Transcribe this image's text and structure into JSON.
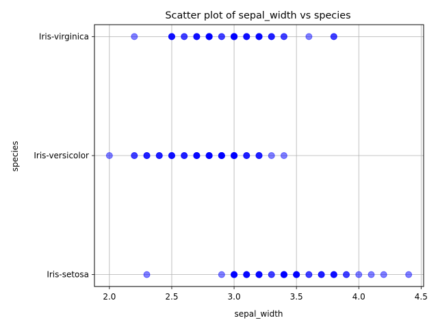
{
  "chart_data": {
    "type": "scatter",
    "title": "Scatter plot of sepal_width vs species",
    "xlabel": "sepal_width",
    "ylabel": "species",
    "xlim": [
      1.88,
      4.52
    ],
    "xticks": [
      2.0,
      2.5,
      3.0,
      3.5,
      4.0,
      4.5
    ],
    "xtick_labels": [
      "2.0",
      "2.5",
      "3.0",
      "3.5",
      "4.0",
      "4.5"
    ],
    "categories": [
      "Iris-setosa",
      "Iris-versicolor",
      "Iris-virginica"
    ],
    "grid": true,
    "marker_color": "#0000ff",
    "marker_alpha": 0.5,
    "series": [
      {
        "category": "Iris-virginica",
        "x": [
          2.2,
          2.5,
          2.5,
          2.5,
          2.5,
          2.6,
          2.6,
          2.7,
          2.7,
          2.7,
          2.7,
          2.8,
          2.8,
          2.8,
          2.8,
          2.8,
          2.8,
          2.8,
          2.8,
          2.9,
          2.9,
          3.0,
          3.0,
          3.0,
          3.0,
          3.0,
          3.0,
          3.0,
          3.0,
          3.0,
          3.0,
          3.0,
          3.0,
          3.1,
          3.1,
          3.1,
          3.1,
          3.2,
          3.2,
          3.2,
          3.2,
          3.2,
          3.3,
          3.3,
          3.3,
          3.4,
          3.4,
          3.6,
          3.8,
          3.8
        ]
      },
      {
        "category": "Iris-versicolor",
        "x": [
          2.0,
          2.2,
          2.2,
          2.3,
          2.3,
          2.3,
          2.4,
          2.4,
          2.4,
          2.5,
          2.5,
          2.5,
          2.5,
          2.6,
          2.6,
          2.6,
          2.7,
          2.7,
          2.7,
          2.7,
          2.7,
          2.8,
          2.8,
          2.8,
          2.8,
          2.8,
          2.8,
          2.9,
          2.9,
          2.9,
          2.9,
          2.9,
          2.9,
          2.9,
          3.0,
          3.0,
          3.0,
          3.0,
          3.0,
          3.0,
          3.0,
          3.0,
          3.1,
          3.1,
          3.1,
          3.2,
          3.2,
          3.2,
          3.3,
          3.4
        ]
      },
      {
        "category": "Iris-setosa",
        "x": [
          2.3,
          2.9,
          3.0,
          3.0,
          3.0,
          3.0,
          3.0,
          3.0,
          3.1,
          3.1,
          3.1,
          3.1,
          3.1,
          3.2,
          3.2,
          3.2,
          3.2,
          3.2,
          3.3,
          3.3,
          3.4,
          3.4,
          3.4,
          3.4,
          3.4,
          3.4,
          3.4,
          3.4,
          3.4,
          3.5,
          3.5,
          3.5,
          3.5,
          3.5,
          3.5,
          3.6,
          3.6,
          3.7,
          3.7,
          3.7,
          3.8,
          3.8,
          3.8,
          3.8,
          3.9,
          3.9,
          4.0,
          4.1,
          4.2,
          4.4
        ]
      }
    ]
  }
}
